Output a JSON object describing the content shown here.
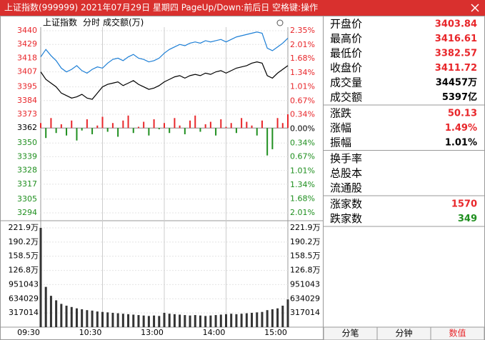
{
  "header": {
    "title": "上证指数(999999) 2021年07月29日 星期四 PageUp/Down:前后日 空格键:操作"
  },
  "chart_data": {
    "type": "line",
    "legend_text": "上证指数",
    "mode": "分时",
    "volume_label": "成交额(万)",
    "x": [
      0,
      5,
      10,
      15,
      20,
      25,
      30,
      35,
      40,
      45,
      50,
      55,
      60,
      65,
      70,
      75,
      80,
      85,
      90,
      95,
      100,
      105,
      110,
      115,
      120,
      125,
      130,
      135,
      140,
      145,
      150,
      155,
      160,
      165,
      170,
      175,
      180,
      185,
      190,
      195,
      200,
      205,
      210,
      215,
      220,
      225,
      230,
      235,
      240
    ],
    "xlim": [
      0,
      240
    ],
    "xticks": [
      {
        "value": 0,
        "label": "09:30"
      },
      {
        "value": 60,
        "label": "10:30"
      },
      {
        "value": 120,
        "label": "13:00"
      },
      {
        "value": 180,
        "label": "14:00"
      },
      {
        "value": 240,
        "label": "15:00"
      }
    ],
    "ylim": [
      3294,
      3440
    ],
    "yticks": [
      3440,
      3429,
      3418,
      3407,
      3395,
      3384,
      3373,
      3362,
      3350,
      3339,
      3328,
      3317,
      3305,
      3294
    ],
    "y2lim": [
      -2.01,
      2.35
    ],
    "y2ticks": [
      {
        "value": 2.35,
        "label": "2.35%"
      },
      {
        "value": 2.01,
        "label": "2.01%"
      },
      {
        "value": 1.68,
        "label": "1.68%"
      },
      {
        "value": 1.34,
        "label": "1.34%"
      },
      {
        "value": 1.01,
        "label": "1.01%"
      },
      {
        "value": 0.67,
        "label": "0.67%"
      },
      {
        "value": 0.34,
        "label": "0.34%"
      },
      {
        "value": 0,
        "label": "0.00%"
      },
      {
        "value": -0.34,
        "label": "0.34%"
      },
      {
        "value": -0.67,
        "label": "0.67%"
      },
      {
        "value": -1.01,
        "label": "1.01%"
      },
      {
        "value": -1.34,
        "label": "1.34%"
      },
      {
        "value": -1.68,
        "label": "1.68%"
      },
      {
        "value": -2.01,
        "label": "2.01%"
      }
    ],
    "series": [
      {
        "color": "#1d7fd6",
        "values": [
          3419,
          3425,
          3420,
          3416,
          3410,
          3407,
          3409,
          3412,
          3408,
          3406,
          3409,
          3411,
          3410,
          3414,
          3417,
          3418,
          3416,
          3419,
          3421,
          3418,
          3417,
          3415,
          3416,
          3418,
          3422,
          3425,
          3427,
          3429,
          3428,
          3430,
          3431,
          3430,
          3432,
          3431,
          3432,
          3433,
          3431,
          3433,
          3435,
          3436,
          3437,
          3438,
          3439,
          3438,
          3426,
          3424,
          3427,
          3430,
          3434
        ]
      },
      {
        "color": "#000000",
        "values": [
          3407,
          3401,
          3398,
          3395,
          3390,
          3388,
          3386,
          3387,
          3389,
          3386,
          3385,
          3390,
          3395,
          3397,
          3398,
          3399,
          3396,
          3398,
          3400,
          3397,
          3395,
          3393,
          3394,
          3396,
          3399,
          3401,
          3403,
          3404,
          3402,
          3404,
          3405,
          3404,
          3406,
          3405,
          3407,
          3408,
          3406,
          3408,
          3410,
          3411,
          3412,
          3414,
          3415,
          3414,
          3404,
          3402,
          3406,
          3409,
          3412
        ]
      }
    ],
    "bars": [
      3366,
      3354,
      3370,
      3358,
      3365,
      3356,
      3368,
      3352,
      3360,
      3369,
      3357,
      3364,
      3371,
      3359,
      3366,
      3355,
      3368,
      3372,
      3358,
      3363,
      3367,
      3356,
      3369,
      3361,
      3366,
      3358,
      3370,
      3364,
      3357,
      3368,
      3372,
      3359,
      3365,
      3367,
      3356,
      3369,
      3363,
      3366,
      3358,
      3370,
      3367,
      3364,
      3356,
      3368,
      3340,
      3345,
      3370,
      3366,
      3373
    ],
    "up_color": "#e8262a",
    "down_color": "#1f8f1f",
    "volume": [
      2219000,
      900000,
      700000,
      600000,
      520000,
      480000,
      450000,
      420000,
      400000,
      380000,
      370000,
      350000,
      340000,
      330000,
      320000,
      310000,
      300000,
      290000,
      280000,
      270000,
      260000,
      250000,
      260000,
      250000,
      320000,
      300000,
      290000,
      280000,
      270000,
      260000,
      270000,
      260000,
      250000,
      260000,
      270000,
      280000,
      290000,
      300000,
      290000,
      300000,
      310000,
      320000,
      330000,
      340000,
      380000,
      400000,
      420000,
      480000,
      620000
    ],
    "volume_color": "#333333",
    "vlim": [
      0,
      2219000
    ],
    "vticks": [
      {
        "value": 2219000,
        "label": "221.9万"
      },
      {
        "value": 1902000,
        "label": "190.2万"
      },
      {
        "value": 1585000,
        "label": "158.5万"
      },
      {
        "value": 1268000,
        "label": "126.8万"
      },
      951043,
      634029,
      317014
    ],
    "grid": true
  },
  "panel": {
    "groups": [
      [
        {
          "label": "开盘价",
          "value": "3403.84",
          "color": "#e8262a"
        },
        {
          "label": "最高价",
          "value": "3416.61",
          "color": "#e8262a"
        },
        {
          "label": "最低价",
          "value": "3382.57",
          "color": "#e8262a"
        },
        {
          "label": "收盘价",
          "value": "3411.72",
          "color": "#e8262a"
        },
        {
          "label": "成交量",
          "value": "34457万",
          "color": "#000000"
        },
        {
          "label": "成交额",
          "value": "5397亿",
          "color": "#000000"
        }
      ],
      [
        {
          "label": "涨跌",
          "value": "50.13",
          "color": "#e8262a"
        },
        {
          "label": "涨幅",
          "value": "1.49%",
          "color": "#e8262a"
        },
        {
          "label": "振幅",
          "value": "1.01%",
          "color": "#000000"
        }
      ],
      [
        {
          "label": "换手率"
        },
        {
          "label": "总股本"
        },
        {
          "label": "流通股"
        }
      ],
      [
        {
          "label": "涨家数",
          "value": "1570",
          "color": "#e8262a"
        },
        {
          "label": "跌家数",
          "value": "349",
          "color": "#1f8f1f"
        }
      ]
    ]
  },
  "tabs": [
    "分笔",
    "分钟",
    "数值"
  ],
  "active_tab": 2
}
